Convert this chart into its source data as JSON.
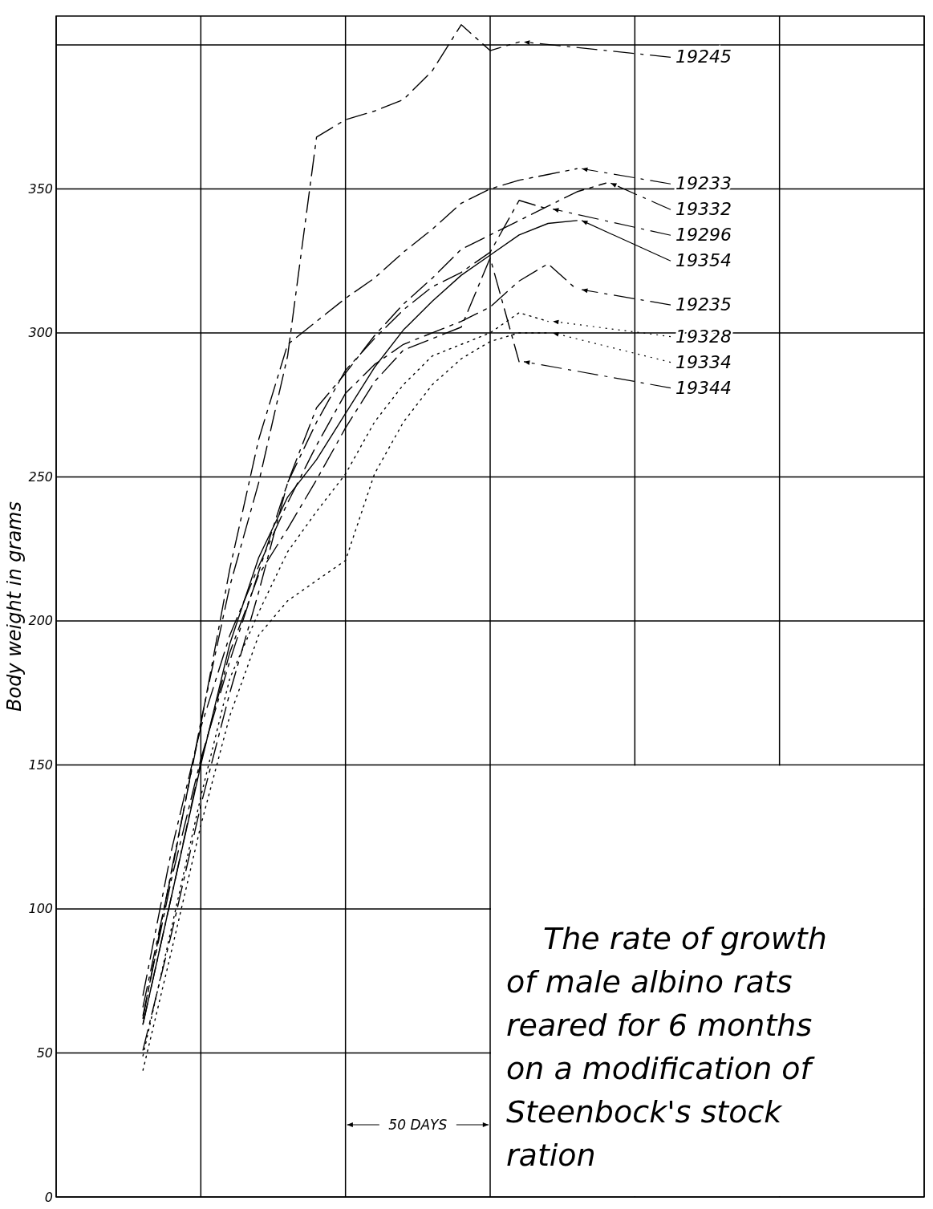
{
  "chart_data": {
    "type": "line",
    "title": "The rate of growth of male albino rats reared for 6 months on a modification of Steenbock's stock ration",
    "ylabel": "Body weight in grams",
    "categories": [
      null,
      null,
      null,
      null,
      null,
      null,
      null,
      null,
      null,
      null,
      null,
      null,
      null,
      null,
      null,
      null,
      null,
      null,
      null,
      null,
      null,
      null,
      null,
      null,
      null,
      null,
      null,
      null,
      null,
      null,
      null
    ],
    "ylim": [
      0,
      410
    ],
    "yticks": [
      0,
      50,
      100,
      150,
      200,
      250,
      300,
      350,
      {
        "value": 400,
        "label": null
      }
    ],
    "grid": true,
    "tick_labels": "y",
    "marker": "none",
    "annotations": [
      "50 DAYS"
    ],
    "series": [
      {
        "name": "19245",
        "color": "#000000",
        "line_style": "dashed",
        "values": [
          null,
          null,
          null,
          66,
          113,
          165,
          212,
          248,
          292,
          368,
          374,
          377,
          381,
          391,
          407,
          398,
          401,
          null,
          null,
          null,
          null,
          null,
          null,
          null,
          null,
          null,
          null,
          null,
          null,
          null,
          null
        ]
      },
      {
        "name": "19233",
        "color": "#000000",
        "line_style": "dashed",
        "values": [
          null,
          null,
          null,
          62,
          114,
          164,
          218,
          263,
          296,
          304,
          312,
          319,
          328,
          336,
          345,
          350,
          353,
          355,
          357,
          null,
          null,
          null,
          null,
          null,
          null,
          null,
          null,
          null,
          null,
          null,
          null
        ]
      },
      {
        "name": "19332",
        "color": "#000000",
        "line_style": "dashed",
        "values": [
          null,
          null,
          null,
          51,
          92,
          136,
          175,
          210,
          248,
          274,
          286,
          299,
          310,
          319,
          329,
          334,
          339,
          344,
          349,
          352,
          null,
          null,
          null,
          null,
          null,
          null,
          null,
          null,
          null,
          null,
          null
        ]
      },
      {
        "name": "19296",
        "color": "#000000",
        "line_style": "dashed",
        "values": [
          null,
          null,
          null,
          63,
          111,
          152,
          186,
          217,
          248,
          269,
          287,
          298,
          308,
          316,
          321,
          328,
          346,
          343,
          null,
          null,
          null,
          null,
          null,
          null,
          null,
          null,
          null,
          null,
          null,
          null,
          null
        ]
      },
      {
        "name": "19354",
        "color": "#000000",
        "line_style": "solid",
        "values": [
          null,
          null,
          null,
          60,
          105,
          150,
          192,
          222,
          243,
          256,
          272,
          288,
          301,
          311,
          320,
          327,
          334,
          338,
          339,
          null,
          null,
          null,
          null,
          null,
          null,
          null,
          null,
          null,
          null,
          null,
          null
        ]
      },
      {
        "name": "19235",
        "color": "#000000",
        "line_style": "dashed",
        "values": [
          null,
          null,
          null,
          70,
          121,
          163,
          195,
          219,
          241,
          261,
          279,
          289,
          296,
          300,
          304,
          309,
          318,
          324,
          315,
          null,
          null,
          null,
          null,
          null,
          null,
          null,
          null,
          null,
          null,
          null,
          null
        ]
      },
      {
        "name": "19328",
        "color": "#000000",
        "line_style": "dotted",
        "values": [
          null,
          null,
          null,
          49,
          94,
          139,
          180,
          203,
          224,
          238,
          251,
          269,
          282,
          292,
          296,
          300,
          307,
          304,
          null,
          null,
          null,
          null,
          null,
          null,
          null,
          null,
          null,
          null,
          null,
          null,
          null
        ]
      },
      {
        "name": "19344",
        "color": "#000000",
        "line_style": "dashed",
        "values": [
          null,
          null,
          null,
          60,
          105,
          151,
          189,
          216,
          232,
          249,
          267,
          283,
          294,
          298,
          302,
          326,
          290,
          null,
          null,
          null,
          null,
          null,
          null,
          null,
          null,
          null,
          null,
          null,
          null,
          null,
          null
        ]
      },
      {
        "name": "19334",
        "color": "#000000",
        "line_style": "dotted",
        "values": [
          null,
          null,
          null,
          44,
          86,
          129,
          167,
          195,
          207,
          214,
          221,
          251,
          269,
          282,
          291,
          297,
          300,
          300,
          null,
          null,
          null,
          null,
          null,
          null,
          null,
          null,
          null,
          null,
          null,
          null,
          null
        ]
      }
    ]
  }
}
